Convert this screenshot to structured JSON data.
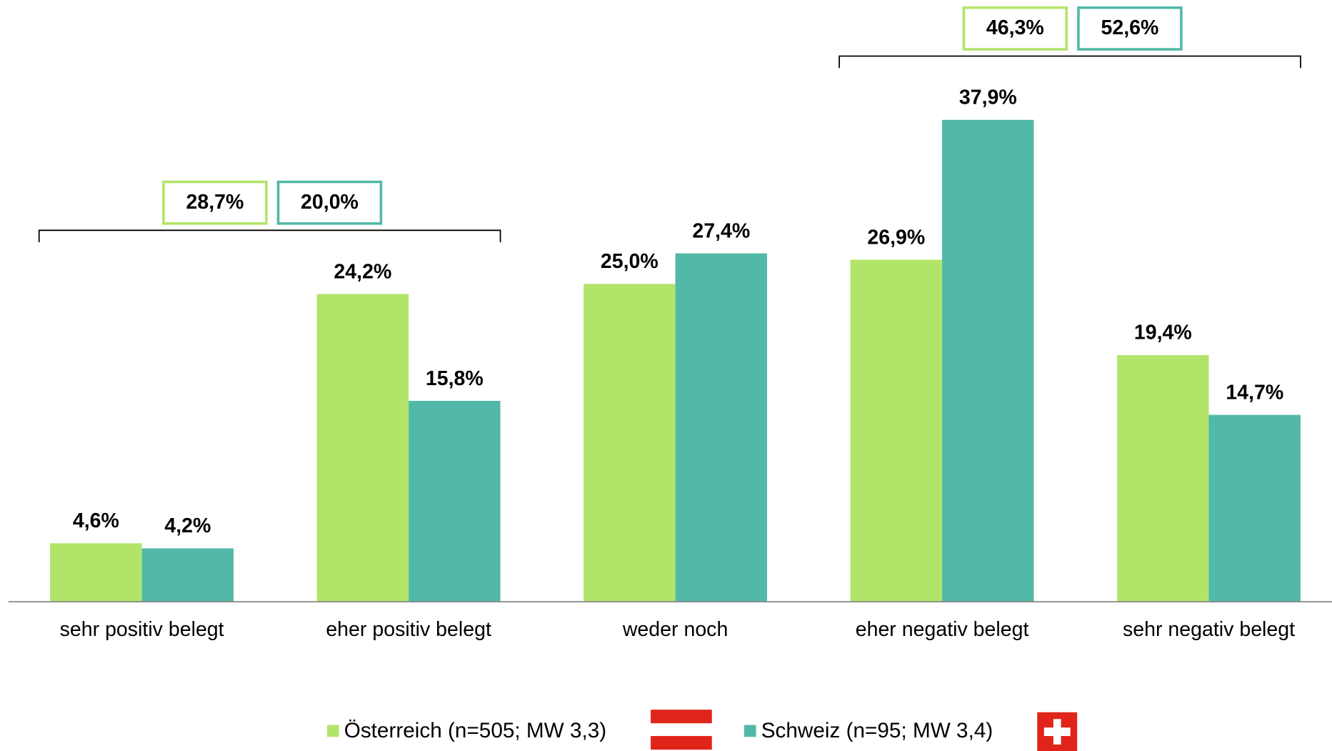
{
  "chart_data": {
    "type": "bar",
    "categories": [
      "sehr positiv belegt",
      "eher positiv belegt",
      "weder noch",
      "eher negativ belegt",
      "sehr negativ belegt"
    ],
    "series": [
      {
        "name": "Österreich (n=505; MW 3,3)",
        "color": "#b3e46a",
        "values": [
          4.6,
          24.2,
          25.0,
          26.9,
          19.4
        ],
        "value_labels": [
          "4,6%",
          "24,2%",
          "25,0%",
          "26,9%",
          "19,4%"
        ]
      },
      {
        "name": "Schweiz (n=95; MW 3,4)",
        "color": "#52b9a8",
        "values": [
          4.2,
          15.8,
          27.4,
          37.9,
          14.7
        ],
        "value_labels": [
          "4,2%",
          "15,8%",
          "27,4%",
          "37,9%",
          "14,7%"
        ]
      }
    ],
    "groups": [
      {
        "values": [
          28.7,
          20.0
        ],
        "value_labels": [
          "28,7%",
          "20,0%"
        ]
      },
      {
        "values": [
          46.3,
          52.6
        ],
        "value_labels": [
          "46,3%",
          "52,6%"
        ]
      }
    ],
    "ylim": [
      0,
      40
    ]
  }
}
